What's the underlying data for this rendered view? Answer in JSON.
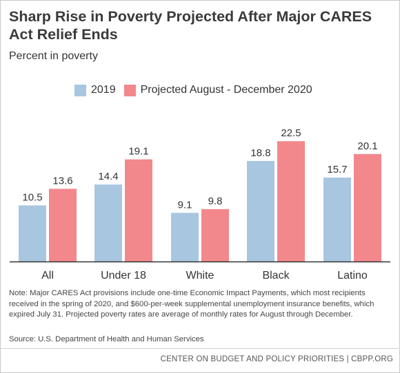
{
  "title": "Sharp Rise in Poverty Projected After Major CARES Act Relief Ends",
  "subtitle": "Percent in poverty",
  "note": "Note: Major CARES Act provisions include one-time Economic Impact Payments, which most recipients received in the spring of 2020, and $600-per-week supplemental unemployment insurance benefits, which expired July 31. Projected poverty rates are average of monthly rates for August through December.",
  "source": "Source: U.S. Department of Health and Human Services",
  "footer": "CENTER ON BUDGET AND POLICY PRIORITIES | CBPP.ORG",
  "chart_data": {
    "type": "bar",
    "categories": [
      "All",
      "Under 18",
      "White",
      "Black",
      "Latino"
    ],
    "series": [
      {
        "name": "2019",
        "color": "#a9c6e0",
        "values": [
          10.5,
          14.4,
          9.1,
          18.8,
          15.7
        ]
      },
      {
        "name": "Projected August - December 2020",
        "color": "#f2888b",
        "values": [
          13.6,
          19.1,
          9.8,
          22.5,
          20.1
        ]
      }
    ],
    "ylim": [
      0,
      25
    ],
    "grid": false,
    "legend": "top"
  }
}
